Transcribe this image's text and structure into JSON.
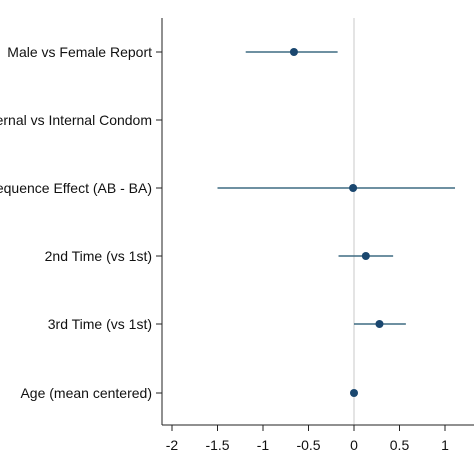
{
  "chart_data": {
    "type": "scatter",
    "title": "",
    "xlabel": "",
    "ylabel": "",
    "xlim": [
      -2.2,
      1.2
    ],
    "x_ticks": [
      -2,
      -1.5,
      -1,
      -0.5,
      0,
      0.5,
      1
    ],
    "x_tick_labels": [
      "-2",
      "-1.5",
      "-1",
      "-0.5",
      "0",
      "0.5",
      "1"
    ],
    "reference_line": 0,
    "grid": false,
    "legend": "none",
    "colors": {
      "marker": "#1a476f",
      "whisker": "#3e6b82",
      "axis": "#222222"
    },
    "categories": [
      "Male vs Female Report",
      "External vs Internal Condom",
      "Sequence Effect (AB - BA)",
      "2nd Time (vs 1st)",
      "3rd Time (vs 1st)",
      "Age (mean centered)"
    ],
    "estimates": [
      -0.66,
      null,
      -0.01,
      0.13,
      0.28,
      0.0
    ],
    "ci_lower": [
      -1.19,
      null,
      -1.5,
      -0.17,
      0.0,
      -0.02
    ],
    "ci_upper": [
      -0.18,
      null,
      1.11,
      0.43,
      0.57,
      0.02
    ]
  }
}
